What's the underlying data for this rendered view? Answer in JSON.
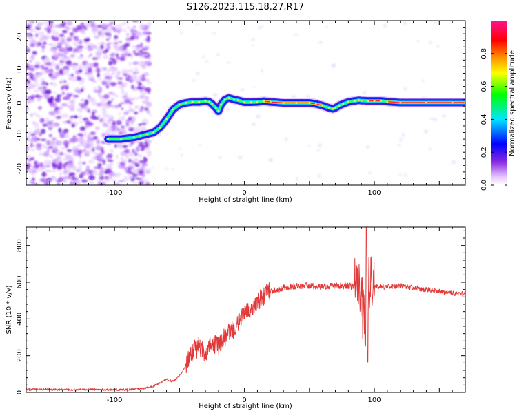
{
  "title": "S126.2023.115.18.27.R17",
  "chart_data": [
    {
      "type": "heatmap",
      "xlabel": "Height of straight line (km)",
      "ylabel": "Frequency (Hz)",
      "xlim": [
        -168,
        170
      ],
      "ylim": [
        -25,
        25
      ],
      "x_ticks": [
        -100,
        0,
        100
      ],
      "y_ticks": [
        20,
        10,
        0,
        -10,
        -20
      ],
      "colorbar": {
        "label": "Normalized spectral amplitude",
        "range": [
          0,
          1
        ],
        "ticks": [
          0.0,
          0.2,
          0.4,
          0.6,
          0.8
        ],
        "colors": [
          "#ffffff",
          "#e6c8ff",
          "#8a2be2",
          "#0000ff",
          "#00e5ff",
          "#00ff00",
          "#ffff00",
          "#ff8c00",
          "#ff0000",
          "#ff1493"
        ]
      },
      "ridge": {
        "x": [
          -105,
          -95,
          -85,
          -80,
          -75,
          -70,
          -65,
          -60,
          -55,
          -50,
          -45,
          -40,
          -35,
          -30,
          -27,
          -25,
          -22,
          -20,
          -18,
          -15,
          -12,
          -8,
          -5,
          0,
          5,
          10,
          15,
          20,
          30,
          40,
          50,
          55,
          60,
          65,
          68,
          70,
          73,
          76,
          80,
          85,
          88,
          90,
          95,
          100,
          105,
          110,
          120,
          140,
          160,
          170
        ],
        "y": [
          -11,
          -11,
          -10.5,
          -10,
          -9.5,
          -9,
          -7.5,
          -5,
          -2,
          -0.5,
          0,
          0.3,
          0.3,
          0.5,
          0.3,
          -0.3,
          -1.5,
          -2.5,
          -0.5,
          1,
          1.5,
          1,
          0.8,
          0.2,
          0.2,
          0.3,
          0.5,
          0.3,
          0,
          0,
          0,
          -0.3,
          -0.8,
          -1.5,
          -1.8,
          -1.5,
          -0.8,
          -0.3,
          0.3,
          0.6,
          0.8,
          0.7,
          0.6,
          0.6,
          0.6,
          0.4,
          0.1,
          0.1,
          0.1,
          0.1
        ]
      }
    },
    {
      "type": "line",
      "xlabel": "Height of straight line (km)",
      "ylabel": "SNR (10 * v/v)",
      "xlim": [
        -168,
        170
      ],
      "ylim": [
        0,
        900
      ],
      "x_ticks": [
        -100,
        0,
        100
      ],
      "y_ticks": [
        0,
        200,
        400,
        600,
        800
      ],
      "line_color": "#e23a3a",
      "series": [
        {
          "x": [
            -168,
            -150,
            -130,
            -110,
            -90,
            -80,
            -75,
            -70,
            -65,
            -60,
            -55,
            -50,
            -45,
            -40,
            -35,
            -30,
            -25,
            -20,
            -15,
            -10,
            -5,
            0,
            5,
            10,
            15,
            20,
            25,
            30,
            40,
            50,
            60,
            70,
            80,
            85,
            88,
            90,
            92,
            94,
            96,
            98,
            100,
            105,
            110,
            120,
            130,
            140,
            150,
            160,
            170
          ],
          "y": [
            15,
            15,
            15,
            15,
            15,
            20,
            25,
            35,
            50,
            70,
            60,
            90,
            150,
            220,
            250,
            220,
            280,
            250,
            300,
            330,
            380,
            420,
            460,
            500,
            530,
            550,
            560,
            570,
            580,
            580,
            575,
            580,
            580,
            575,
            560,
            540,
            400,
            300,
            600,
            590,
            580,
            575,
            575,
            580,
            570,
            560,
            550,
            540,
            535
          ]
        }
      ]
    }
  ]
}
